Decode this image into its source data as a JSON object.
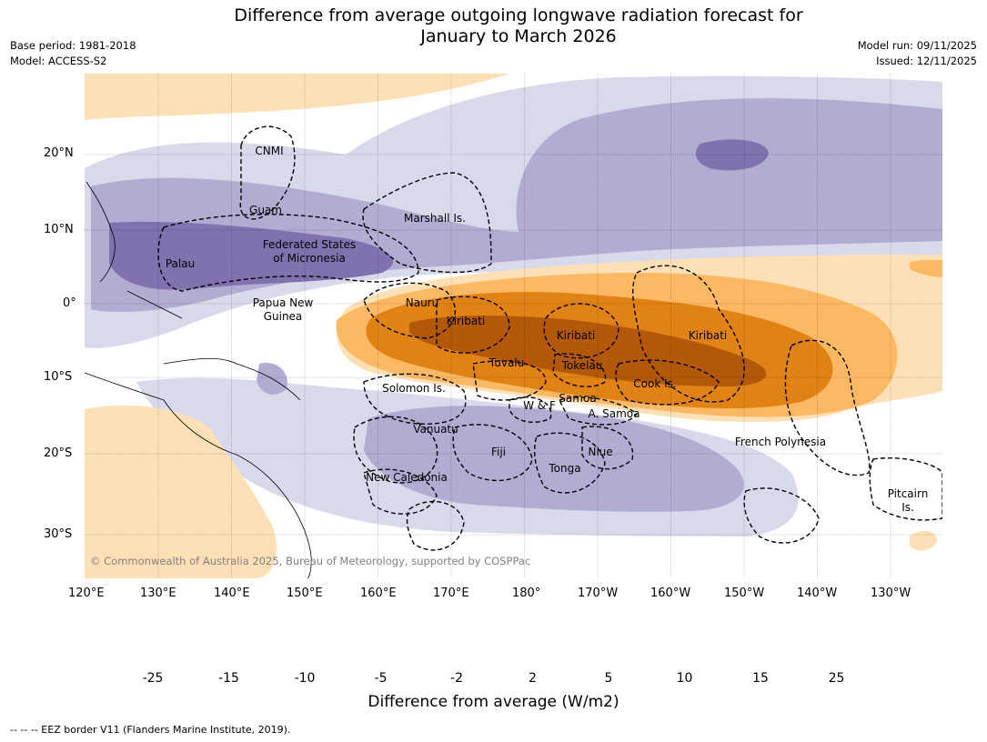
{
  "title_line1": "Difference from average outgoing longwave radiation forecast for",
  "title_line2": "January to March 2026",
  "meta_left": [
    "Base period: 1981-2018",
    "Model: ACCESS-S2"
  ],
  "meta_right": [
    "Model run: 09/11/2025",
    "Issued: 12/11/2025"
  ],
  "copyright": "© Commonwealth of Australia 2025, Bureau of Meteorology, supported by COSPPac",
  "lon_ticks": [
    "120°E",
    "130°E",
    "140°E",
    "150°E",
    "160°E",
    "170°E",
    "180°",
    "170°W",
    "160°W",
    "150°W",
    "140°W",
    "130°W"
  ],
  "lat_ticks": [
    "20°N",
    "10°N",
    "0°",
    "10°S",
    "20°S",
    "30°S"
  ],
  "regions": {
    "cnmi": "CNMI",
    "guam": "Guam",
    "marshall": "Marshall Is.",
    "fsm1": "Federated States",
    "fsm2": "of Micronesia",
    "palau": "Palau",
    "png1": "Papua New",
    "png2": "Guinea",
    "nauru": "Nauru",
    "kiribati_w": "Kiribati",
    "kiribati_c": "Kiribati",
    "kiribati_e": "Kiribati",
    "tuvalu": "Tuvalu",
    "tokelau": "Tokelau",
    "cook": "Cook Is.",
    "solomon": "Solomon Is.",
    "wf": "W & F",
    "samoa": "Samoa",
    "asamoa": "A. Samoa",
    "vanuatu": "Vanuatu",
    "fiji": "Fiji",
    "niue": "Niue",
    "tonga": "Tonga",
    "newcal": "New Caledonia",
    "frpoly": "French Polynesia",
    "pitcairn1": "Pitcairn",
    "pitcairn2": "Is."
  },
  "colorbar": {
    "levels": [
      "-25",
      "-15",
      "-10",
      "-5",
      "-2",
      "2",
      "5",
      "10",
      "15",
      "25"
    ],
    "colors": [
      "#2d004b",
      "#5b2a8d",
      "#8072af",
      "#b2abd2",
      "#d8daeb",
      "#ffffff",
      "#fee0b6",
      "#fdb863",
      "#e08214",
      "#b35806",
      "#7f3b08"
    ],
    "title": "Difference from average (W/m2)"
  },
  "footnote": "--  --  -- EEZ border V11 (Flanders Marine Institute, 2019)."
}
